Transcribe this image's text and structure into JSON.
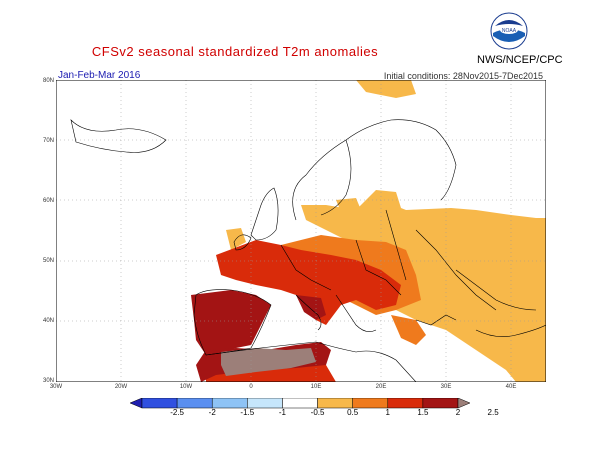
{
  "title": "CFSv2 seasonal standardized T2m anomalies",
  "period": "Jan-Feb-Mar 2016",
  "initial_conditions": "Initial conditions: 28Nov2015-7Dec2015",
  "agency": "NWS/NCEP/CPC",
  "logo_text": "NOAA",
  "lat_labels": [
    "80N",
    "70N",
    "60N",
    "50N",
    "40N",
    "30N"
  ],
  "lon_labels": [
    "30W",
    "20W",
    "10W",
    "0",
    "10E",
    "20E",
    "30E",
    "40E"
  ],
  "colorbar": {
    "labels": [
      "-2.5",
      "-2",
      "-1.5",
      "-1",
      "-0.5",
      "0.5",
      "1",
      "1.5",
      "2",
      "2.5"
    ],
    "colors": [
      "#1f1fb0",
      "#3050e0",
      "#5a8ff0",
      "#8ec3f5",
      "#c6e6fb",
      "#ffffff",
      "#f7b84a",
      "#ef7a1d",
      "#d92b0a",
      "#a31414",
      "#9c7f79"
    ]
  },
  "colors": {
    "level_0_5": "#f7b84a",
    "level_1": "#ef7a1d",
    "level_1_5": "#d92b0a",
    "level_2": "#a31414",
    "level_2_5": "#9c7f79"
  }
}
